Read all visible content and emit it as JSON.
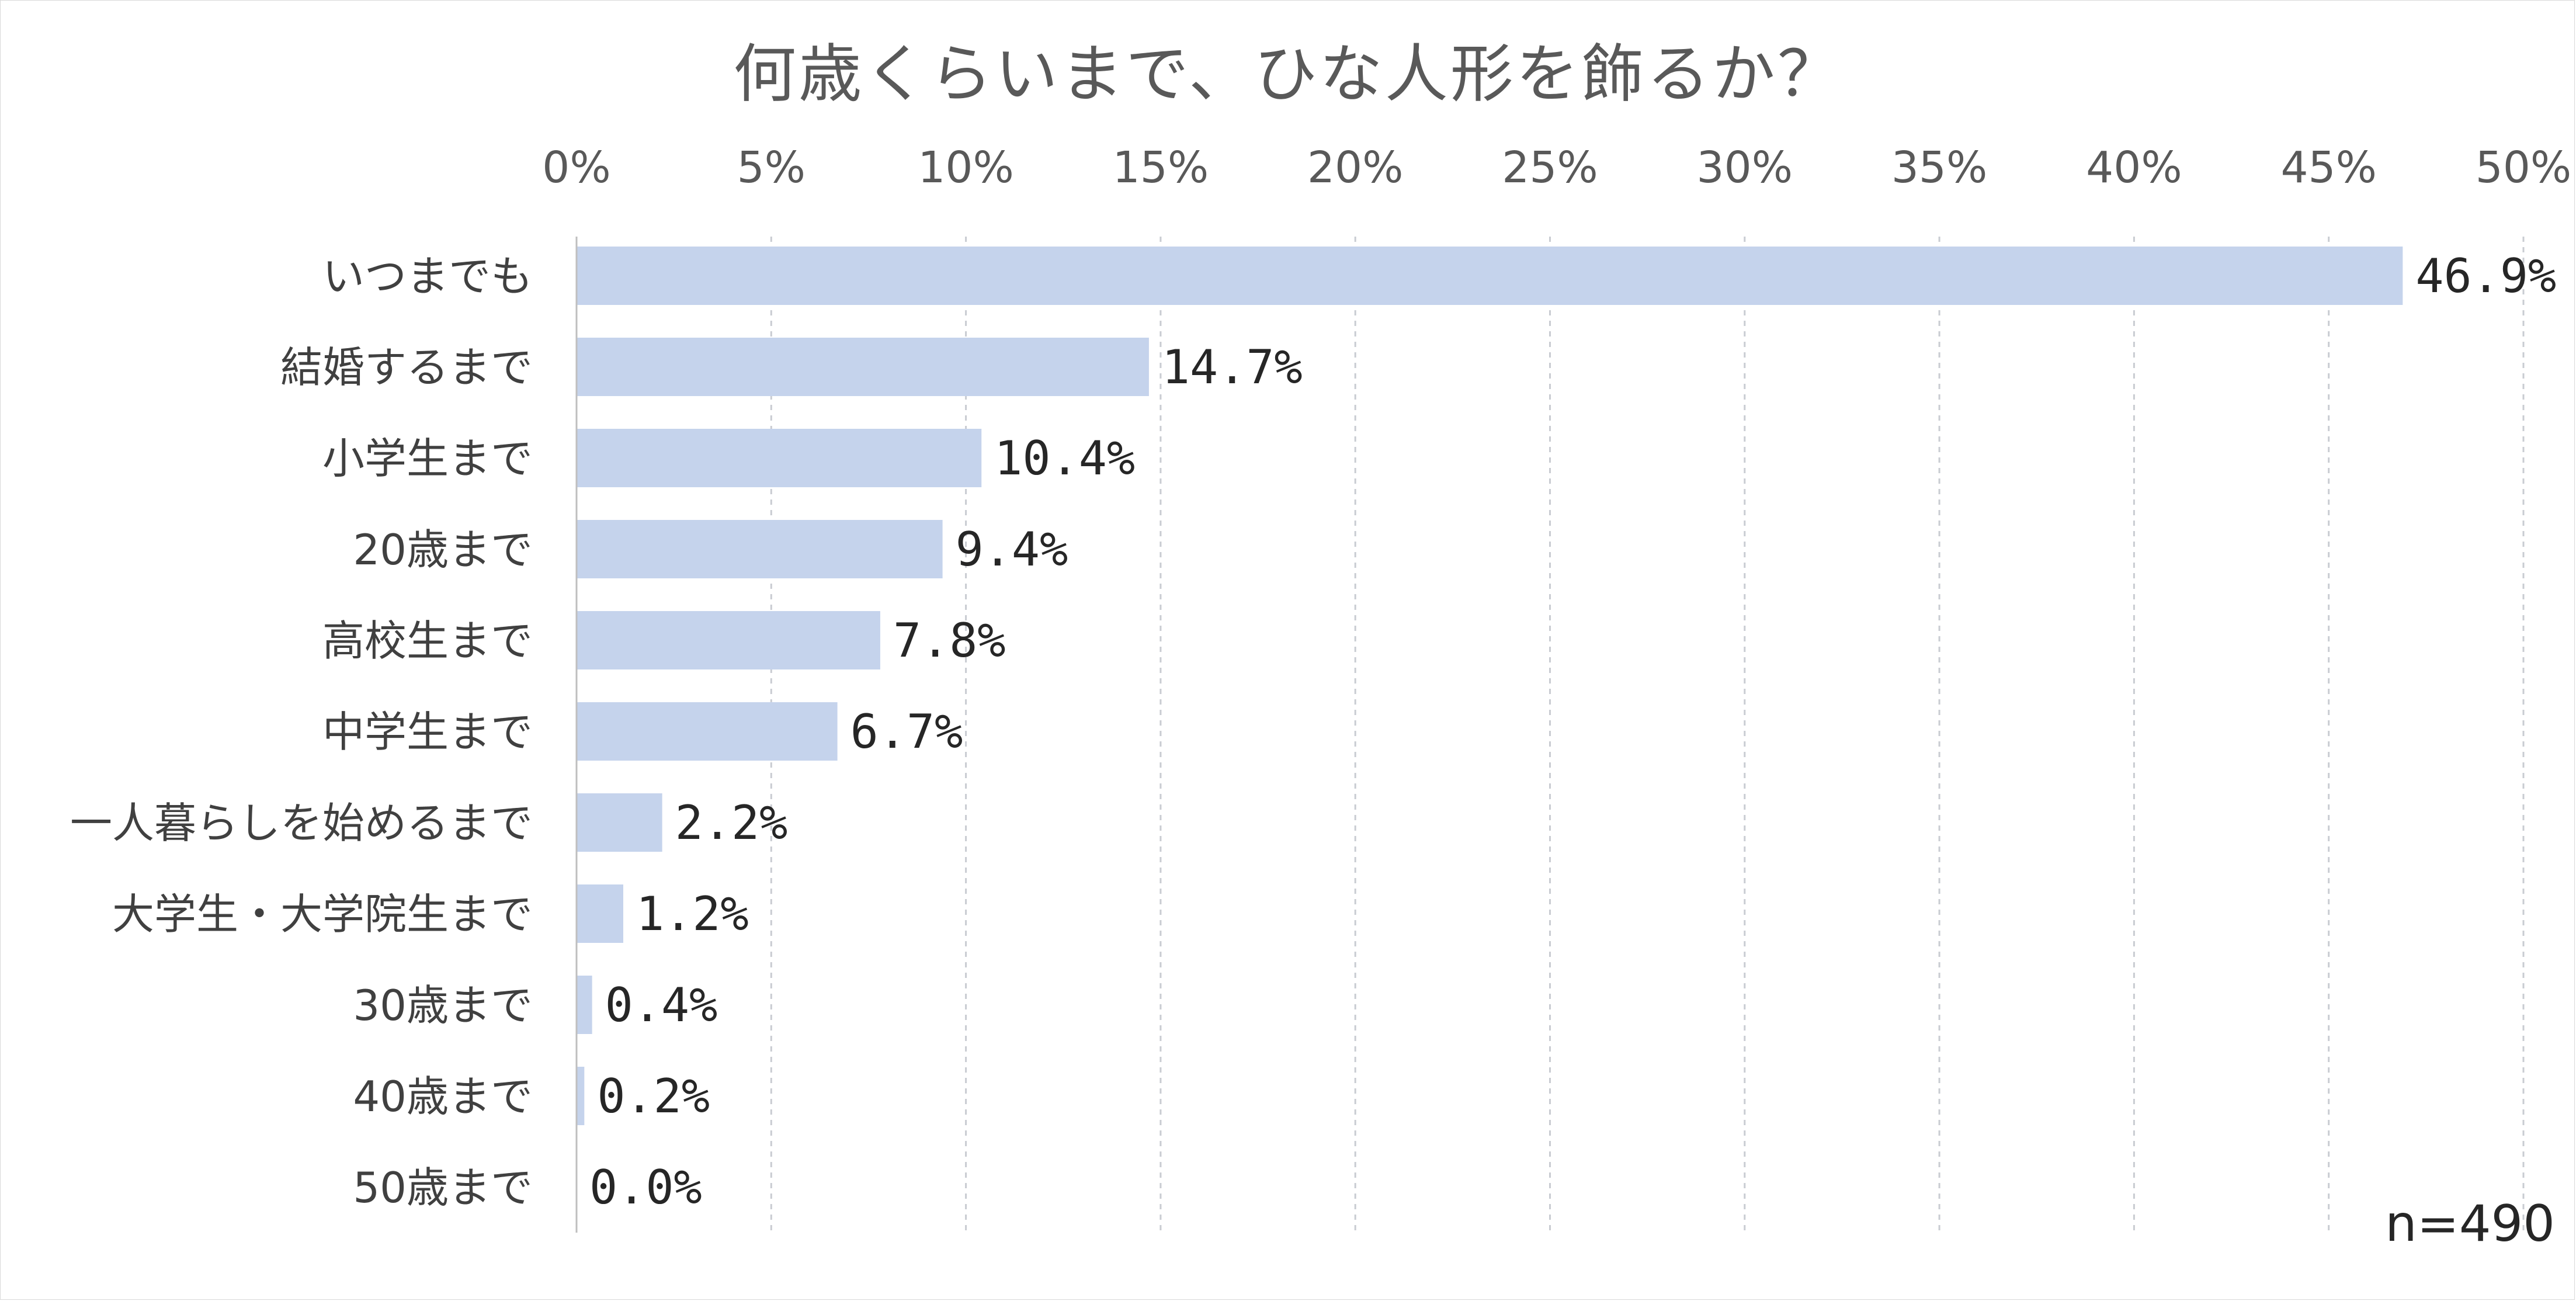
{
  "chart_data": {
    "type": "bar",
    "orientation": "horizontal",
    "title": "何歳くらいまで、ひな人形を飾るか？",
    "categories": [
      "いつまでも",
      "結婚するまで",
      "小学生まで",
      "20歳まで",
      "高校生まで",
      "中学生まで",
      "一人暮らしを始めるまで",
      "大学生・大学院生まで",
      "30歳まで",
      "40歳まで",
      "50歳まで"
    ],
    "values": [
      46.9,
      14.7,
      10.4,
      9.4,
      7.8,
      6.7,
      2.2,
      1.2,
      0.4,
      0.2,
      0.0
    ],
    "value_labels": [
      "46.9%",
      "14.7%",
      "10.4%",
      "9.4%",
      "7.8%",
      "6.7%",
      "2.2%",
      "1.2%",
      "0.4%",
      "0.2%",
      "0.0%"
    ],
    "xlim": [
      0,
      50
    ],
    "x_ticks": [
      "0%",
      "5%",
      "10%",
      "15%",
      "20%",
      "25%",
      "30%",
      "35%",
      "40%",
      "45%",
      "50%"
    ],
    "x_axis_position": "top",
    "grid": "vertical dashed",
    "bar_color": "#c5d3ec",
    "annotation": "n=490"
  }
}
